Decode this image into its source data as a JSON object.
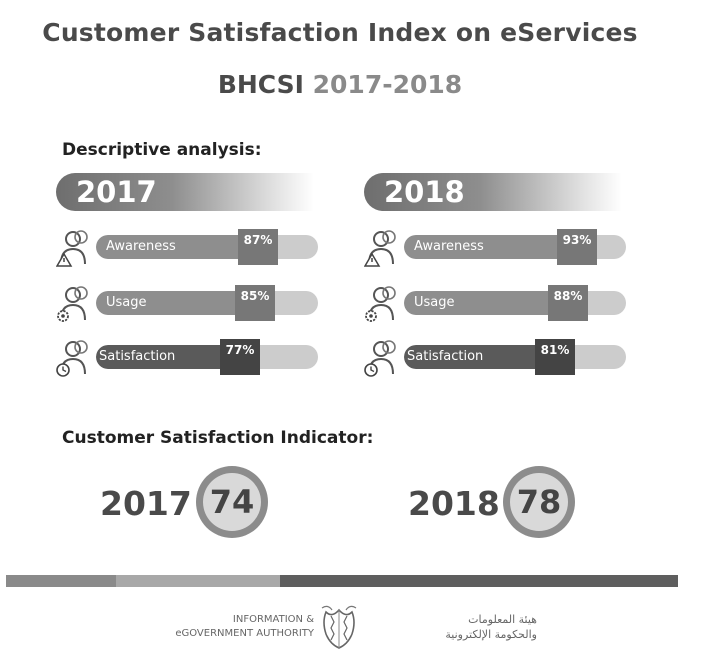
{
  "title": "Customer Satisfaction Index on eServices",
  "subtitle": {
    "prefix": "BHCSI",
    "years": "2017-2018"
  },
  "descriptive_label": "Descriptive analysis:",
  "indicator_label": "Customer Satisfaction Indicator:",
  "colors": {
    "dark": "#4a4a4a",
    "mid": "#8e8e8e",
    "light": "#cccccc",
    "deep": "#5a5a5a"
  },
  "chart_data": {
    "type": "bar",
    "title": "Descriptive analysis",
    "categories": [
      "Awareness",
      "Usage",
      "Satisfaction"
    ],
    "series": [
      {
        "name": "2017",
        "values": [
          87,
          85,
          77
        ],
        "labels": [
          "87%",
          "85%",
          "77%"
        ]
      },
      {
        "name": "2018",
        "values": [
          93,
          88,
          81
        ],
        "labels": [
          "93%",
          "88%",
          "81%"
        ]
      }
    ],
    "ylim": [
      0,
      100
    ],
    "icons": [
      "warning-user-icon",
      "gear-user-icon",
      "clock-user-icon"
    ]
  },
  "indicator": [
    {
      "year": "2017",
      "value": "74"
    },
    {
      "year": "2018",
      "value": "78"
    }
  ],
  "footer": {
    "en_line1": "INFORMATION &",
    "en_line2": "eGOVERNMENT AUTHORITY",
    "ar_line1": "هيئة المعلومات",
    "ar_line2": "والحكومة الإلكترونية"
  }
}
